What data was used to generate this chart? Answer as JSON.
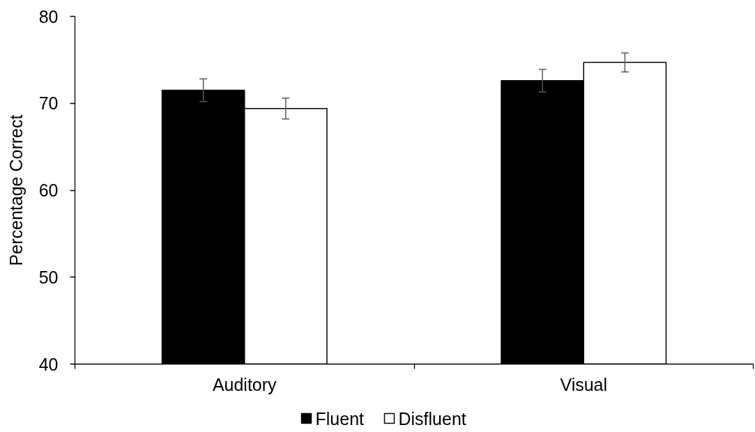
{
  "chart_data": {
    "type": "bar",
    "categories": [
      "Auditory",
      "Visual"
    ],
    "series": [
      {
        "name": "Fluent",
        "color": "#000000",
        "values": [
          71.5,
          72.6
        ],
        "errors": [
          1.3,
          1.3
        ]
      },
      {
        "name": "Disfluent",
        "color": "#ffffff",
        "values": [
          69.4,
          74.7
        ],
        "errors": [
          1.2,
          1.1
        ]
      }
    ],
    "ylabel": "Percentage Correct",
    "ylim": [
      40,
      80
    ],
    "yticks": [
      40,
      50,
      60,
      70,
      80
    ],
    "grid": false,
    "legend": "bottom"
  }
}
